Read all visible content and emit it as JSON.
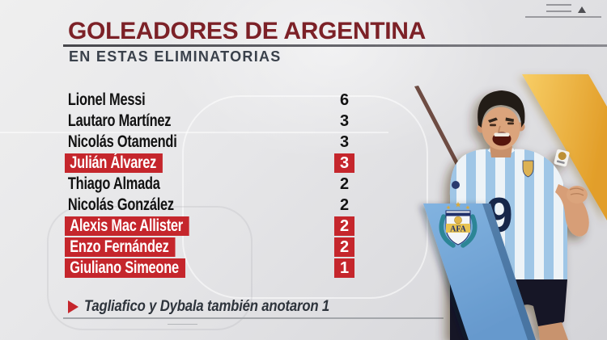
{
  "header": {
    "title": "GOLEADORES DE ARGENTINA",
    "subtitle": "EN ESTAS ELIMINATORIAS"
  },
  "table": {
    "rows": [
      {
        "name": "Lionel Messi",
        "goals": "6",
        "highlighted": false
      },
      {
        "name": "Lautaro Martínez",
        "goals": "3",
        "highlighted": false
      },
      {
        "name": "Nicolás Otamendi",
        "goals": "3",
        "highlighted": false
      },
      {
        "name": "Julián Álvarez",
        "goals": "3",
        "highlighted": true
      },
      {
        "name": "Thiago Almada",
        "goals": "2",
        "highlighted": false
      },
      {
        "name": "Nicolás González",
        "goals": "2",
        "highlighted": false
      },
      {
        "name": "Alexis Mac Allister",
        "goals": "2",
        "highlighted": true
      },
      {
        "name": "Enzo Fernández",
        "goals": "2",
        "highlighted": true
      },
      {
        "name": "Giuliano Simeone",
        "goals": "1",
        "highlighted": true
      }
    ]
  },
  "footer": {
    "note": "Tagliafico y Dybala también anotaron 1"
  },
  "photo": {
    "jersey_number": "9"
  },
  "crest": {
    "text": "AFA"
  },
  "colors": {
    "accent-red": "#c5262c",
    "title-maroon": "#7c2127",
    "band-yellow": "#eeb43c",
    "band-blue": "#74a7d9",
    "crest-teal": "#2c8596",
    "text-dark": "#16191f"
  },
  "chart_data": {
    "type": "table",
    "title": "GOLEADORES DE ARGENTINA",
    "subtitle": "EN ESTAS ELIMINATORIAS",
    "rows": [
      [
        "Lionel Messi",
        6
      ],
      [
        "Lautaro Martínez",
        3
      ],
      [
        "Nicolás Otamendi",
        3
      ],
      [
        "Julián Álvarez",
        3
      ],
      [
        "Thiago Almada",
        2
      ],
      [
        "Nicolás González",
        2
      ],
      [
        "Alexis Mac Allister",
        2
      ],
      [
        "Enzo Fernández",
        2
      ],
      [
        "Giuliano Simeone",
        1
      ]
    ],
    "highlighted_rows": [
      "Julián Álvarez",
      "Alexis Mac Allister",
      "Enzo Fernández",
      "Giuliano Simeone"
    ],
    "note": "Tagliafico y Dybala también anotaron 1",
    "legend_position": "none",
    "grid": false
  }
}
